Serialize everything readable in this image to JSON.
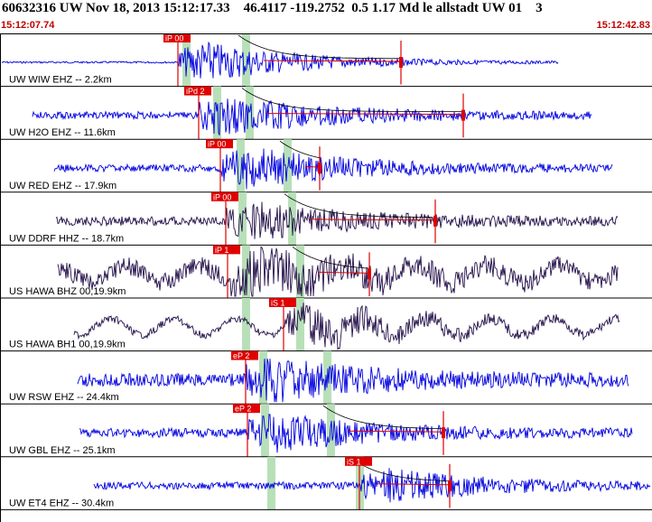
{
  "header": {
    "title": "60632316 UW Nov 18, 2013 15:12:17.33    46.4117 -119.2752  0.5 1.17 Md le allstadt UW 01    3",
    "start_time": "15:12:07.74",
    "end_time": "15:12:42.83"
  },
  "colors": {
    "trace_blue": "#0000e0",
    "trace_dark": "#24104a",
    "pick_red": "#e00000",
    "window_green": "#b8e0b8",
    "divider": "#000000"
  },
  "traces": [
    {
      "label": "UW WIW EHZ -- 2.2km",
      "pick": "iP 00",
      "color": "blue"
    },
    {
      "label": "UW H2O EHZ -- 11.6km",
      "pick": "iPd 2",
      "color": "blue"
    },
    {
      "label": "UW RED EHZ -- 17.9km",
      "pick": "iP 00",
      "color": "blue"
    },
    {
      "label": "UW DDRF HHZ -- 18.7km",
      "pick": "iP 00",
      "color": "dark"
    },
    {
      "label": "US HAWA BHZ 00,19.9km",
      "pick": "iP 1",
      "color": "dark"
    },
    {
      "label": "US HAWA BH1 00,19.9km",
      "pick": "iS 1",
      "color": "dark"
    },
    {
      "label": "UW RSW EHZ -- 24.4km",
      "pick": "eP 2",
      "color": "blue"
    },
    {
      "label": "UW GBL EHZ -- 25.1km",
      "pick": "eP 2",
      "color": "blue"
    },
    {
      "label": "UW ET4 EHZ -- 30.4km",
      "pick": "iS 1",
      "color": "blue"
    }
  ]
}
